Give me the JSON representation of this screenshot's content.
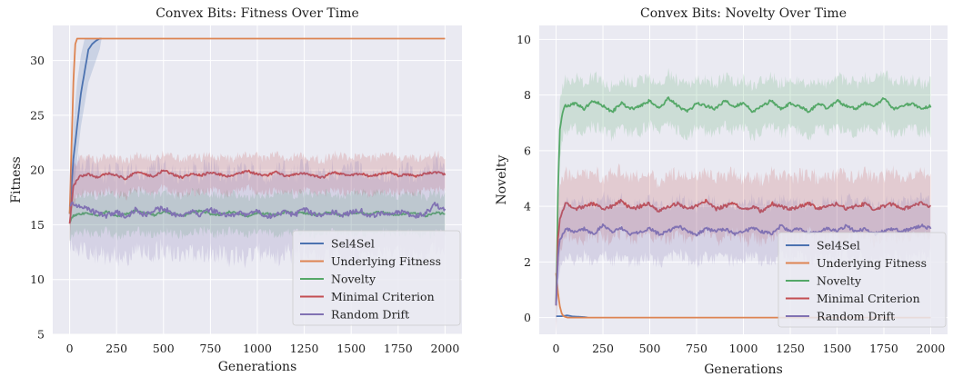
{
  "chart_data": [
    {
      "type": "line",
      "title": "Convex Bits: Fitness Over Time",
      "xlabel": "Generations",
      "ylabel": "Fitness",
      "xlim": [
        -90,
        2090
      ],
      "ylim": [
        5,
        33.2
      ],
      "xticks": [
        0,
        250,
        500,
        750,
        1000,
        1250,
        1500,
        1750,
        2000
      ],
      "yticks": [
        5,
        10,
        15,
        20,
        25,
        30
      ],
      "grid": true,
      "legend_position": "bottom-right",
      "series": [
        {
          "name": "Sel4Sel",
          "color": "#4c72b0",
          "x": [
            0,
            20,
            40,
            60,
            80,
            100,
            120,
            140,
            160,
            170
          ],
          "y": [
            16,
            21,
            24,
            27,
            29,
            31,
            31.5,
            31.8,
            32,
            32
          ],
          "band": [
            [
              15,
              17
            ],
            [
              18,
              24
            ],
            [
              21,
              28
            ],
            [
              24,
              30.5
            ],
            [
              26,
              32
            ],
            [
              28,
              32
            ],
            [
              29,
              32
            ],
            [
              30,
              32
            ],
            [
              31,
              32
            ],
            [
              32,
              32
            ]
          ]
        },
        {
          "name": "Underlying Fitness",
          "color": "#dd8452",
          "x": [
            0,
            10,
            20,
            30,
            40,
            60,
            2000
          ],
          "y": [
            16,
            22,
            28,
            31.5,
            32,
            32,
            32
          ]
        },
        {
          "name": "Novelty",
          "color": "#55a868",
          "x": [
            0,
            20,
            50,
            100,
            150,
            200,
            250,
            300,
            350,
            400,
            450,
            500,
            550,
            600,
            650,
            700,
            750,
            800,
            850,
            900,
            950,
            1000,
            1050,
            1100,
            1150,
            1200,
            1250,
            1300,
            1350,
            1400,
            1450,
            1500,
            1550,
            1600,
            1650,
            1700,
            1750,
            1800,
            1850,
            1900,
            1950,
            2000
          ],
          "y": [
            15.3,
            15.8,
            16.0,
            16.1,
            15.9,
            16.2,
            15.8,
            16.0,
            16.3,
            16.1,
            15.9,
            16.2,
            16.0,
            15.8,
            16.1,
            16.3,
            16.0,
            15.9,
            16.2,
            16.0,
            15.8,
            16.1,
            16.0,
            15.9,
            16.2,
            16.0,
            16.1,
            15.9,
            16.0,
            16.2,
            15.8,
            16.0,
            16.1,
            15.9,
            16.2,
            16.0,
            15.9,
            16.1,
            16.0,
            15.8,
            16.1,
            16.0
          ],
          "band_width": 1.8
        },
        {
          "name": "Minimal Criterion",
          "color": "#c44e52",
          "x": [
            0,
            20,
            50,
            100,
            150,
            200,
            250,
            300,
            350,
            400,
            450,
            500,
            550,
            600,
            650,
            700,
            750,
            800,
            850,
            900,
            950,
            1000,
            1050,
            1100,
            1150,
            1200,
            1250,
            1300,
            1350,
            1400,
            1450,
            1500,
            1550,
            1600,
            1650,
            1700,
            1750,
            1800,
            1850,
            1900,
            1950,
            2000
          ],
          "y": [
            15.2,
            18.5,
            19.4,
            19.6,
            19.3,
            19.7,
            19.5,
            19.2,
            19.8,
            19.6,
            19.4,
            20.0,
            19.6,
            19.3,
            19.7,
            19.5,
            19.8,
            19.6,
            19.4,
            19.7,
            19.9,
            19.6,
            19.5,
            19.8,
            19.4,
            19.6,
            19.7,
            19.5,
            19.3,
            19.8,
            19.6,
            19.5,
            19.7,
            19.4,
            19.6,
            19.8,
            19.5,
            19.6,
            19.4,
            19.7,
            19.8,
            19.6
          ],
          "band_width": 1.6
        },
        {
          "name": "Random Drift",
          "color": "#8172b3",
          "x": [
            0,
            20,
            50,
            100,
            150,
            200,
            250,
            300,
            350,
            400,
            450,
            500,
            550,
            600,
            650,
            700,
            750,
            800,
            850,
            900,
            950,
            1000,
            1050,
            1100,
            1150,
            1200,
            1250,
            1300,
            1350,
            1400,
            1450,
            1500,
            1550,
            1600,
            1650,
            1700,
            1750,
            1800,
            1850,
            1900,
            1950,
            2000
          ],
          "y": [
            17.0,
            16.9,
            16.6,
            16.4,
            16.0,
            15.8,
            16.2,
            15.6,
            16.4,
            15.9,
            16.3,
            16.5,
            16.0,
            15.7,
            16.2,
            15.9,
            16.4,
            16.0,
            15.8,
            16.1,
            15.9,
            16.3,
            15.7,
            16.0,
            16.2,
            15.9,
            16.4,
            16.0,
            15.8,
            16.2,
            15.9,
            16.1,
            16.3,
            15.8,
            16.0,
            15.9,
            16.2,
            16.0,
            15.8,
            16.1,
            16.9,
            16.3
          ],
          "band_width": 3.8
        }
      ]
    },
    {
      "type": "line",
      "title": "Convex Bits: Novelty Over Time",
      "xlabel": "Generations",
      "ylabel": "Novelty",
      "xlim": [
        -90,
        2090
      ],
      "ylim": [
        -0.6,
        10.5
      ],
      "xticks": [
        0,
        250,
        500,
        750,
        1000,
        1250,
        1500,
        1750,
        2000
      ],
      "yticks": [
        0,
        2,
        4,
        6,
        8,
        10
      ],
      "grid": true,
      "legend_position": "bottom-right",
      "series": [
        {
          "name": "Sel4Sel",
          "color": "#4c72b0",
          "x": [
            0,
            30,
            60,
            90,
            120,
            150,
            170
          ],
          "y": [
            0.05,
            0.05,
            0.08,
            0.04,
            0.03,
            0.02,
            0.0
          ]
        },
        {
          "name": "Underlying Fitness",
          "color": "#dd8452",
          "x": [
            0,
            10,
            20,
            30,
            40,
            60,
            2000
          ],
          "y": [
            1.6,
            0.9,
            0.4,
            0.15,
            0.05,
            0.0,
            0.0
          ]
        },
        {
          "name": "Novelty",
          "color": "#55a868",
          "x": [
            0,
            10,
            20,
            35,
            50,
            100,
            150,
            200,
            250,
            300,
            350,
            400,
            450,
            500,
            550,
            600,
            650,
            700,
            750,
            800,
            850,
            900,
            950,
            1000,
            1050,
            1100,
            1150,
            1200,
            1250,
            1300,
            1350,
            1400,
            1450,
            1500,
            1550,
            1600,
            1650,
            1700,
            1750,
            1800,
            1850,
            1900,
            1950,
            2000
          ],
          "y": [
            0.5,
            4.5,
            6.8,
            7.4,
            7.6,
            7.7,
            7.5,
            7.8,
            7.6,
            7.4,
            7.7,
            7.5,
            7.6,
            7.8,
            7.5,
            7.9,
            7.6,
            7.4,
            7.7,
            7.6,
            7.5,
            7.8,
            7.6,
            7.7,
            7.4,
            7.6,
            7.8,
            7.5,
            7.7,
            7.6,
            7.4,
            7.7,
            7.5,
            7.8,
            7.6,
            7.5,
            7.7,
            7.6,
            7.9,
            7.5,
            7.6,
            7.7,
            7.5,
            7.6
          ],
          "band_width": 0.9
        },
        {
          "name": "Minimal Criterion",
          "color": "#c44e52",
          "x": [
            0,
            10,
            20,
            35,
            50,
            100,
            150,
            200,
            250,
            300,
            350,
            400,
            450,
            500,
            550,
            600,
            650,
            700,
            750,
            800,
            850,
            900,
            950,
            1000,
            1050,
            1100,
            1150,
            1200,
            1250,
            1300,
            1350,
            1400,
            1450,
            1500,
            1550,
            1600,
            1650,
            1700,
            1750,
            1800,
            1850,
            1900,
            1950,
            2000
          ],
          "y": [
            0.5,
            2.8,
            3.5,
            3.8,
            4.1,
            3.9,
            4.0,
            4.1,
            3.9,
            4.0,
            4.2,
            3.9,
            4.0,
            4.1,
            3.8,
            4.0,
            4.1,
            3.9,
            4.0,
            4.2,
            3.9,
            4.0,
            4.1,
            3.9,
            4.0,
            3.8,
            4.1,
            4.0,
            3.9,
            4.0,
            4.1,
            3.9,
            4.0,
            4.1,
            3.9,
            4.0,
            4.1,
            3.9,
            4.0,
            4.1,
            3.9,
            4.0,
            4.1,
            4.0
          ],
          "band_width": 1.1
        },
        {
          "name": "Random Drift",
          "color": "#8172b3",
          "x": [
            0,
            10,
            20,
            35,
            50,
            100,
            150,
            200,
            250,
            300,
            350,
            400,
            450,
            500,
            550,
            600,
            650,
            700,
            750,
            800,
            850,
            900,
            950,
            1000,
            1050,
            1100,
            1150,
            1200,
            1250,
            1300,
            1350,
            1400,
            1450,
            1500,
            1550,
            1600,
            1650,
            1700,
            1750,
            1800,
            1850,
            1900,
            1950,
            2000
          ],
          "y": [
            0.5,
            2.2,
            2.8,
            3.0,
            3.2,
            3.1,
            3.2,
            3.0,
            3.3,
            3.1,
            3.2,
            3.0,
            3.1,
            3.2,
            3.0,
            3.1,
            3.3,
            3.1,
            3.0,
            3.2,
            3.1,
            3.2,
            3.0,
            3.1,
            3.2,
            3.1,
            3.0,
            3.3,
            3.1,
            3.2,
            3.0,
            3.1,
            3.2,
            3.1,
            3.3,
            3.1,
            3.2,
            3.0,
            3.1,
            3.2,
            3.1,
            3.2,
            3.3,
            3.2
          ],
          "band_width": 1.0
        }
      ]
    }
  ]
}
